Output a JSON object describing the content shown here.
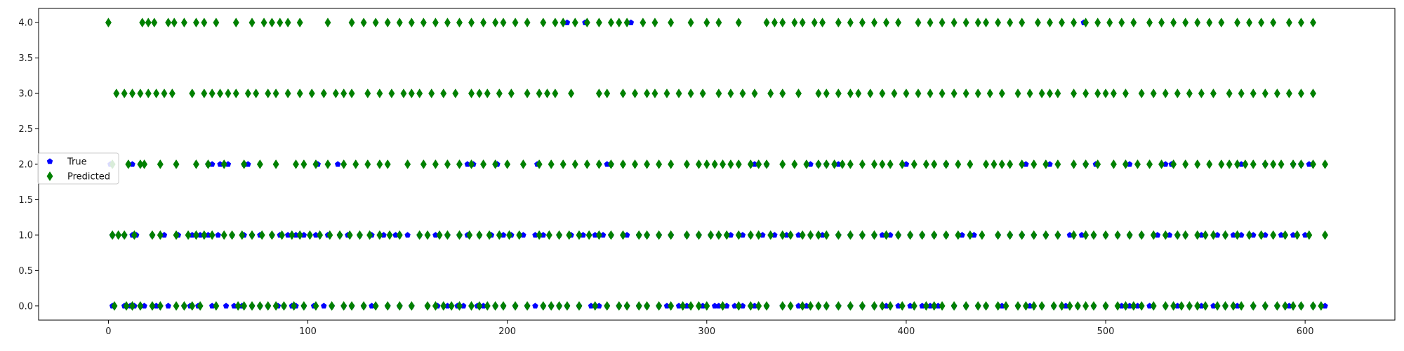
{
  "chart_data": {
    "type": "scatter",
    "xlim": [
      -35,
      645
    ],
    "ylim": [
      -0.2,
      4.2
    ],
    "x_ticks": [
      0,
      100,
      200,
      300,
      400,
      500,
      600
    ],
    "y_ticks": [
      0.0,
      0.5,
      1.0,
      1.5,
      2.0,
      2.5,
      3.0,
      3.5,
      4.0
    ],
    "x_tick_labels": [
      "0",
      "100",
      "200",
      "300",
      "400",
      "500",
      "600"
    ],
    "y_tick_labels": [
      "0.0",
      "0.5",
      "1.0",
      "1.5",
      "2.0",
      "2.5",
      "3.0",
      "3.5",
      "4.0"
    ],
    "grid": false,
    "legend_position": "center-left",
    "series": [
      {
        "name": "True",
        "marker": "pentagon",
        "color": "#0000ff",
        "points": {
          "0": [
            2,
            8,
            11,
            13,
            18,
            24,
            30,
            38,
            41,
            45,
            52,
            59,
            63,
            65,
            67,
            72,
            76,
            80,
            85,
            88,
            92,
            94,
            98,
            103,
            108,
            112,
            118,
            122,
            128,
            132,
            140,
            146,
            152,
            160,
            165,
            170,
            175,
            178,
            185,
            188,
            194,
            198,
            204,
            210,
            214,
            218,
            222,
            226,
            230,
            236,
            242,
            246,
            250,
            256,
            260,
            266,
            270,
            276,
            280,
            286,
            290,
            298,
            304,
            306,
            310,
            314,
            318,
            324,
            330,
            338,
            346,
            350,
            356,
            360,
            366,
            372,
            378,
            384,
            390,
            396,
            402,
            408,
            412,
            416,
            424,
            430,
            436,
            440,
            448,
            456,
            462,
            468,
            474,
            480,
            486,
            494,
            500,
            508,
            512,
            516,
            522,
            530,
            536,
            542,
            548,
            554,
            560,
            566,
            574,
            580,
            586,
            592,
            598,
            604,
            610
          ],
          "1": [
            2,
            8,
            12,
            14,
            22,
            28,
            35,
            42,
            46,
            50,
            55,
            62,
            68,
            72,
            76,
            82,
            86,
            90,
            94,
            98,
            104,
            110,
            116,
            120,
            126,
            132,
            138,
            144,
            150,
            156,
            164,
            170,
            176,
            180,
            186,
            192,
            198,
            202,
            208,
            214,
            218,
            226,
            232,
            238,
            244,
            248,
            252,
            260,
            266,
            270,
            276,
            282,
            290,
            296,
            302,
            306,
            312,
            318,
            322,
            328,
            334,
            340,
            346,
            352,
            358,
            366,
            372,
            378,
            384,
            388,
            392,
            396,
            402,
            408,
            414,
            420,
            428,
            434,
            446,
            452,
            458,
            464,
            470,
            476,
            482,
            488,
            494,
            500,
            506,
            512,
            518,
            526,
            532,
            536,
            540,
            548,
            556,
            560,
            564,
            568,
            574,
            580,
            588,
            594,
            600
          ],
          "2": [
            1,
            12,
            50,
            52,
            56,
            60,
            68,
            70,
            105,
            115,
            180,
            183,
            195,
            215,
            250,
            252,
            324,
            330,
            352,
            356,
            360,
            366,
            400,
            420,
            460,
            472,
            490,
            495,
            512,
            530,
            533,
            568,
            580,
            594,
            598,
            602
          ],
          "3": [],
          "4": [
            230,
            239,
            262,
            489
          ]
        }
      },
      {
        "name": "Predicted",
        "marker": "thin_diamond",
        "color": "#008000",
        "points": {
          "0": [
            3,
            9,
            12,
            16,
            22,
            26,
            34,
            38,
            42,
            46,
            54,
            65,
            68,
            72,
            76,
            80,
            84,
            88,
            93,
            98,
            104,
            112,
            118,
            122,
            128,
            134,
            140,
            146,
            152,
            160,
            164,
            168,
            172,
            176,
            182,
            186,
            190,
            194,
            198,
            204,
            210,
            218,
            222,
            226,
            230,
            236,
            244,
            250,
            256,
            260,
            266,
            270,
            276,
            282,
            288,
            292,
            296,
            300,
            308,
            316,
            322,
            326,
            330,
            338,
            342,
            348,
            352,
            356,
            360,
            366,
            372,
            378,
            384,
            388,
            392,
            398,
            404,
            410,
            414,
            418,
            424,
            430,
            436,
            440,
            446,
            450,
            456,
            460,
            464,
            468,
            474,
            478,
            482,
            486,
            490,
            494,
            500,
            506,
            510,
            514,
            518,
            524,
            530,
            534,
            538,
            542,
            546,
            550,
            556,
            560,
            564,
            568,
            574,
            580,
            586,
            590,
            594,
            598,
            604,
            608
          ],
          "1": [
            2,
            5,
            8,
            13,
            22,
            26,
            34,
            40,
            44,
            48,
            52,
            58,
            62,
            67,
            72,
            77,
            82,
            87,
            92,
            96,
            101,
            106,
            111,
            116,
            121,
            126,
            131,
            136,
            141,
            146,
            156,
            160,
            166,
            170,
            176,
            181,
            186,
            191,
            196,
            201,
            206,
            216,
            221,
            226,
            231,
            236,
            241,
            246,
            252,
            258,
            266,
            270,
            276,
            282,
            290,
            296,
            302,
            306,
            310,
            316,
            322,
            326,
            332,
            338,
            342,
            348,
            352,
            356,
            360,
            366,
            372,
            378,
            384,
            390,
            396,
            402,
            408,
            414,
            420,
            426,
            432,
            438,
            446,
            452,
            458,
            464,
            470,
            476,
            484,
            490,
            494,
            500,
            506,
            512,
            518,
            524,
            530,
            536,
            540,
            546,
            550,
            554,
            560,
            566,
            572,
            578,
            584,
            590,
            596,
            602,
            610
          ],
          "2": [
            2,
            10,
            16,
            18,
            26,
            34,
            44,
            50,
            58,
            68,
            76,
            84,
            94,
            98,
            104,
            110,
            118,
            124,
            130,
            136,
            140,
            150,
            158,
            164,
            170,
            176,
            182,
            188,
            194,
            200,
            208,
            216,
            222,
            228,
            234,
            240,
            246,
            252,
            258,
            264,
            270,
            276,
            282,
            290,
            296,
            300,
            304,
            308,
            312,
            316,
            322,
            326,
            330,
            338,
            344,
            350,
            356,
            360,
            364,
            368,
            372,
            378,
            384,
            388,
            392,
            398,
            404,
            410,
            414,
            420,
            426,
            432,
            440,
            444,
            448,
            452,
            458,
            464,
            470,
            476,
            484,
            490,
            496,
            504,
            510,
            516,
            522,
            528,
            534,
            540,
            546,
            552,
            558,
            562,
            566,
            570,
            574,
            580,
            584,
            588,
            594,
            598,
            604,
            610
          ],
          "3": [
            4,
            8,
            12,
            16,
            20,
            24,
            28,
            32,
            42,
            48,
            52,
            56,
            60,
            64,
            70,
            74,
            80,
            84,
            90,
            96,
            102,
            108,
            114,
            118,
            122,
            130,
            136,
            142,
            148,
            152,
            156,
            162,
            168,
            174,
            182,
            186,
            190,
            196,
            202,
            210,
            216,
            220,
            224,
            232,
            246,
            250,
            258,
            264,
            270,
            274,
            280,
            286,
            292,
            298,
            306,
            312,
            318,
            324,
            332,
            338,
            346,
            356,
            360,
            366,
            372,
            376,
            382,
            388,
            394,
            400,
            406,
            412,
            418,
            424,
            430,
            436,
            442,
            448,
            456,
            462,
            468,
            472,
            476,
            484,
            490,
            496,
            500,
            504,
            510,
            518,
            524,
            530,
            536,
            542,
            548,
            554,
            562,
            568,
            574,
            580,
            586,
            592,
            598,
            604
          ],
          "4": [
            0,
            17,
            20,
            23,
            30,
            33,
            38,
            44,
            48,
            54,
            64,
            72,
            78,
            82,
            86,
            90,
            96,
            110,
            122,
            128,
            134,
            140,
            146,
            152,
            158,
            164,
            170,
            176,
            182,
            188,
            194,
            198,
            204,
            210,
            218,
            224,
            228,
            234,
            240,
            246,
            252,
            256,
            260,
            268,
            274,
            282,
            292,
            300,
            306,
            316,
            330,
            334,
            338,
            344,
            348,
            354,
            358,
            366,
            372,
            378,
            384,
            390,
            396,
            406,
            412,
            418,
            424,
            430,
            436,
            440,
            446,
            452,
            458,
            466,
            472,
            478,
            484,
            490,
            496,
            502,
            508,
            514,
            522,
            528,
            534,
            540,
            546,
            552,
            558,
            566,
            572,
            578,
            584,
            592,
            598,
            604
          ]
        }
      }
    ]
  }
}
